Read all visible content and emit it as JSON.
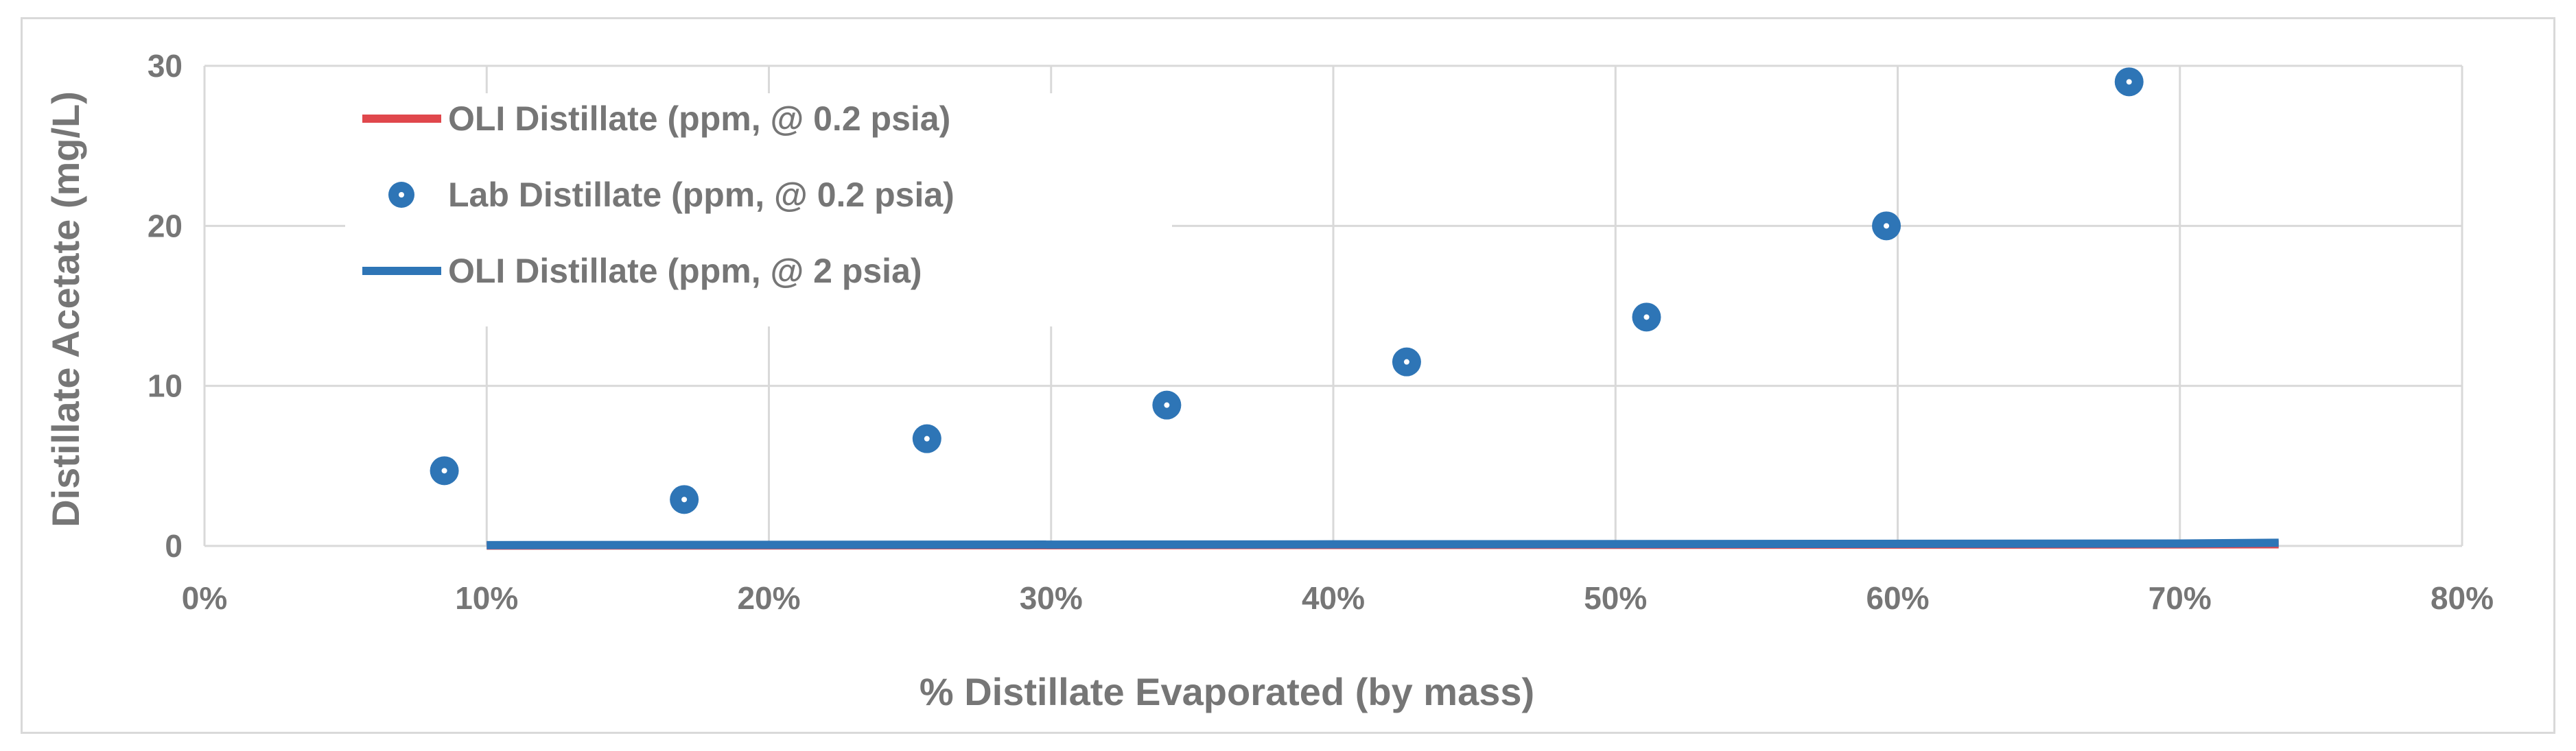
{
  "chart_data": {
    "type": "scatter",
    "title": "",
    "xlabel": "% Distillate Evaporated (by mass)",
    "ylabel": "Distillate Acetate (mg/L)",
    "xlim": [
      0,
      80
    ],
    "ylim": [
      0,
      30
    ],
    "x_ticks": [
      "0%",
      "10%",
      "20%",
      "30%",
      "40%",
      "50%",
      "60%",
      "70%",
      "80%"
    ],
    "y_ticks": [
      "0",
      "10",
      "20",
      "30"
    ],
    "grid": true,
    "legend_position": "top-left",
    "series": [
      {
        "name": "OLI Distillate (ppm, @ 0.2 psia)",
        "type": "line",
        "color": "#e0474c",
        "x": [
          10,
          73.5
        ],
        "y": [
          0.02,
          0.1
        ]
      },
      {
        "name": "Lab Distillate (ppm, @ 0.2 psia)",
        "type": "scatter",
        "color": "#2e75b6",
        "x": [
          8.5,
          17,
          25.6,
          34.1,
          42.6,
          51.1,
          59.6,
          68.2
        ],
        "y": [
          4.7,
          2.9,
          6.7,
          8.8,
          11.5,
          14.3,
          20.0,
          29.0
        ]
      },
      {
        "name": "OLI Distillate (ppm, @ 2 psia)",
        "type": "line",
        "color": "#2e75b6",
        "x": [
          10,
          40,
          70,
          73.5
        ],
        "y": [
          0.05,
          0.1,
          0.15,
          0.2
        ]
      }
    ]
  }
}
